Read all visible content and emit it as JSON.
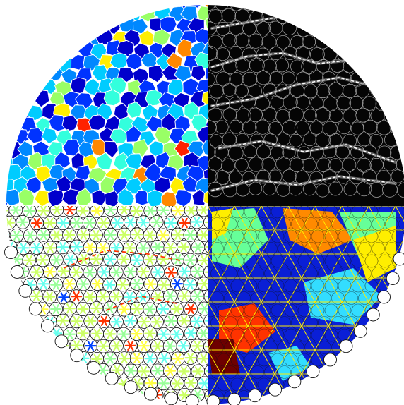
{
  "figure": {
    "description_visible_text": "",
    "background": "#ffffff",
    "quadrants": [
      {
        "id": "voronoi-colormap",
        "position": "top-left",
        "style": "colored voronoi polygons with white borders",
        "palette": [
          "#0000cc",
          "#0033ff",
          "#0088ff",
          "#00ccff",
          "#33ffdd",
          "#99ff66",
          "#ffee00",
          "#ff8800",
          "#ff2200"
        ]
      },
      {
        "id": "microscopy-circles",
        "position": "top-right",
        "style": "dark fluorescence image with white particle filaments and gray circle outlines",
        "palette": [
          "#050505",
          "#1a1a1a",
          "#cfcfcf",
          "#ffffff"
        ]
      },
      {
        "id": "bond-orientation-circles",
        "position": "bottom-left",
        "style": "black circle outlines with colored star-shaped bond markers",
        "palette": [
          "#ccff66",
          "#99ff99",
          "#66ffee",
          "#ffff44",
          "#ff3300",
          "#0044ff"
        ]
      },
      {
        "id": "triangulation-overlay",
        "position": "bottom-right",
        "style": "colored domains with yellow delaunay triangle edges and black circles",
        "palette": [
          "#0a1fd6",
          "#1133ee",
          "#ffee00",
          "#ff8a00",
          "#ff3300",
          "#6e0000",
          "#66ff99",
          "#33ddff"
        ]
      }
    ],
    "disk": {
      "shape": "circle",
      "split": "four quadrants"
    }
  }
}
